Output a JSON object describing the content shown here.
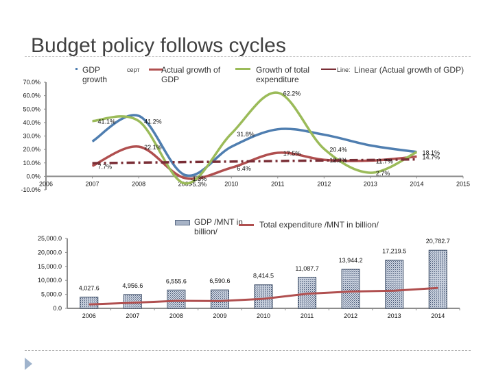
{
  "slide": {
    "title": "Budget policy follows cycles"
  },
  "legend_top": [
    {
      "label": "GDP growth",
      "color": "#4f7eb0",
      "style": "line"
    },
    {
      "label": "Actual growth of GDP",
      "color": "#b04f4f",
      "style": "line",
      "prefix": "серт"
    },
    {
      "label": "Growth of total expenditure",
      "color": "#9bbb59",
      "style": "line"
    },
    {
      "label": "Linear (Actual growth of GDP)",
      "color": "#7a2e36",
      "style": "dash-dot",
      "prefix": "Line:"
    }
  ],
  "legend_bottom": [
    {
      "label": "GDP /MNT in billion/",
      "color": "#8c9bb3",
      "style": "hatched-bar"
    },
    {
      "label": "Total expenditure /MNT in billion/",
      "color": "#b04f4f",
      "style": "line"
    }
  ],
  "chart_data": [
    {
      "type": "line",
      "title": "",
      "x": [
        2007,
        2008,
        2009,
        2010,
        2011,
        2012,
        2013,
        2014
      ],
      "xticks": [
        "2006",
        "2007",
        "2008",
        "2009",
        "2010",
        "2011",
        "2012",
        "2013",
        "2014",
        "2015"
      ],
      "xlim": [
        2006,
        2015
      ],
      "ylim": [
        -10,
        70
      ],
      "yticks": [
        "70.0%",
        "60.0%",
        "50.0%",
        "40.0%",
        "30.0%",
        "20.0%",
        "10.0%",
        "0.0%",
        "-10.0%"
      ],
      "grid": false,
      "legend": "top",
      "series": [
        {
          "name": "GDP growth",
          "color": "#4f7eb0",
          "values": [
            26.0,
            45.0,
            1.0,
            22.0,
            35.0,
            31.0,
            23.0,
            18.1
          ]
        },
        {
          "name": "Actual growth of GDP",
          "color": "#b04f4f",
          "values": [
            7.7,
            22.1,
            -1.3,
            6.4,
            17.5,
            12.3,
            11.7,
            14.7
          ]
        },
        {
          "name": "Growth of total expenditure",
          "color": "#9bbb59",
          "values": [
            41.1,
            41.2,
            -5.3,
            31.8,
            62.2,
            20.4,
            2.7,
            18.1
          ]
        },
        {
          "name": "Linear (Actual growth of GDP)",
          "color": "#7a2e36",
          "values": [
            9.8,
            10.2,
            10.6,
            11.0,
            11.4,
            11.8,
            12.2,
            12.6
          ]
        }
      ],
      "data_labels": [
        {
          "text": "41.1%",
          "x": 2007,
          "y": 41.1
        },
        {
          "text": "41.2%",
          "x": 2008,
          "y": 41.2
        },
        {
          "text": "22.1%",
          "x": 2008,
          "y": 22.1
        },
        {
          "text": "7.7%",
          "x": 2007,
          "y": 7.7
        },
        {
          "text": "-1.3%",
          "x": 2009,
          "y": -1.3
        },
        {
          "text": "-5.3%",
          "x": 2009,
          "y": -5.3
        },
        {
          "text": "31.8%",
          "x": 2010,
          "y": 31.8
        },
        {
          "text": "6.4%",
          "x": 2010,
          "y": 6.4
        },
        {
          "text": "62.2%",
          "x": 2011,
          "y": 62.2
        },
        {
          "text": "17.5%",
          "x": 2011,
          "y": 17.5
        },
        {
          "text": "20.4%",
          "x": 2012,
          "y": 20.4
        },
        {
          "text": "12.3%",
          "x": 2012,
          "y": 12.3
        },
        {
          "text": "11.7%",
          "x": 2013,
          "y": 11.7
        },
        {
          "text": "2.7%",
          "x": 2013,
          "y": 2.7
        },
        {
          "text": "18.1%",
          "x": 2014,
          "y": 18.1
        },
        {
          "text": "14.7%",
          "x": 2014,
          "y": 14.7
        }
      ]
    },
    {
      "type": "bar",
      "title": "",
      "categories": [
        "2006",
        "2007",
        "2008",
        "2009",
        "2010",
        "2011",
        "2012",
        "2013",
        "2014"
      ],
      "ylim": [
        0,
        25000
      ],
      "yticks": [
        "25,000.0",
        "20,000.0",
        "15,000.0",
        "10,000.0",
        "5,000.0",
        "0.0"
      ],
      "grid": false,
      "legend": "top",
      "series": [
        {
          "name": "GDP /MNT in billion/",
          "type": "bar",
          "color": "#8c9bb3",
          "values": [
            4027.6,
            4956.6,
            6555.6,
            6590.6,
            8414.5,
            11087.7,
            13944.2,
            17219.5,
            20782.7
          ]
        },
        {
          "name": "Total expenditure /MNT in billion/",
          "type": "line",
          "color": "#b04f4f",
          "values": [
            1400,
            2000,
            2700,
            2600,
            3400,
            5200,
            6000,
            6300,
            7300
          ]
        }
      ],
      "data_labels": [
        "4,027.6",
        "4,956.6",
        "6,555.6",
        "6,590.6",
        "8,414.5",
        "11,087.7",
        "13,944.2",
        "17,219.5",
        "20,782.7"
      ]
    }
  ]
}
